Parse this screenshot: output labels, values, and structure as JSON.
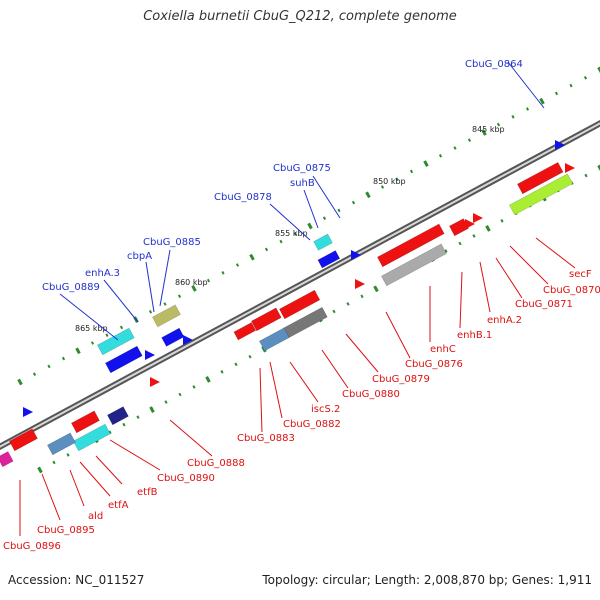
{
  "title": "Coxiella burnetii CbuG_Q212, complete genome",
  "footer": {
    "accession": "Accession: NC_011527",
    "summary": "Topology: circular; Length: 2,008,870 bp; Genes: 1,911"
  },
  "colors": {
    "backbone": "#888888",
    "tick_mark": "#2e8b2e",
    "label_top": "#2233cc",
    "label_bottom": "#dd1111",
    "gene_red": "#ee1111",
    "gene_blue": "#1111ee",
    "gene_cyan": "#33dddd",
    "gene_lime": "#aaee33",
    "gene_olive": "#bbbb66",
    "gene_gray": "#aaaaaa",
    "gene_magenta": "#dd2299"
  },
  "scale_ticks": [
    "845 kbp",
    "850 kbp",
    "855 kbp",
    "860 kbp",
    "865 kbp"
  ],
  "labels_top": [
    "CbuG_0864",
    "CbuG_0875",
    "suhB",
    "CbuG_0878",
    "CbuG_0885",
    "cbpA",
    "enhA.3",
    "CbuG_0889"
  ],
  "labels_bottom": [
    "secF",
    "CbuG_0870",
    "CbuG_0871",
    "enhA.2",
    "enhB.1",
    "enhC",
    "CbuG_0876",
    "CbuG_0879",
    "CbuG_0880",
    "iscS.2",
    "CbuG_0882",
    "CbuG_0883",
    "CbuG_0888",
    "CbuG_0890",
    "etfB",
    "etfA",
    "ald",
    "CbuG_0895",
    "CbuG_0896"
  ]
}
